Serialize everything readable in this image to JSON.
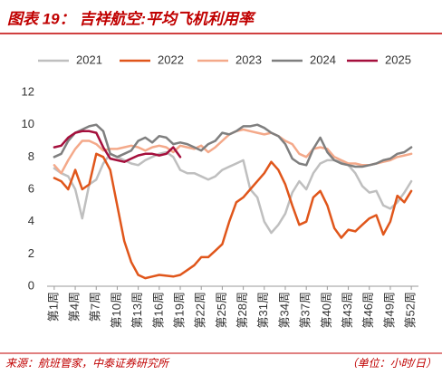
{
  "title": "图表 19： 吉祥航空:平均飞机利用率",
  "source": "来源：航班管家，中泰证券研究所",
  "unit_note": "（单位：小时/日）",
  "chart_data": {
    "type": "line",
    "categories": [
      "第1周",
      null,
      null,
      "第4周",
      null,
      null,
      "第7周",
      null,
      null,
      "第10周",
      null,
      null,
      "第13周",
      null,
      null,
      "第16周",
      null,
      null,
      "第19周",
      null,
      null,
      "第22周",
      null,
      null,
      "第25周",
      null,
      null,
      "第28周",
      null,
      null,
      "第31周",
      null,
      null,
      "第34周",
      null,
      null,
      "第37周",
      null,
      null,
      "第40周",
      null,
      null,
      "第43周",
      null,
      null,
      "第46周",
      null,
      null,
      "第49周",
      null,
      null,
      "第52周"
    ],
    "ylim": [
      0,
      12
    ],
    "yticks": [
      0,
      2,
      4,
      6,
      8,
      10,
      12
    ],
    "legend": "top",
    "series": [
      {
        "name": "2021",
        "color": "#bfbfbf",
        "values": [
          7.3,
          7.0,
          6.8,
          6.0,
          4.2,
          6.3,
          6.6,
          7.6,
          8.2,
          8.0,
          7.8,
          7.6,
          7.5,
          7.8,
          8.0,
          8.2,
          8.3,
          8.0,
          7.2,
          7.0,
          7.0,
          6.8,
          6.6,
          6.8,
          7.2,
          7.4,
          7.6,
          7.8,
          6.0,
          5.5,
          4.0,
          3.3,
          3.8,
          4.5,
          5.8,
          6.5,
          6.0,
          7.0,
          7.6,
          7.8,
          7.8,
          7.7,
          7.5,
          7.0,
          6.2,
          5.8,
          5.9,
          5.0,
          4.8,
          5.2,
          5.8,
          6.5
        ]
      },
      {
        "name": "2022",
        "color": "#e0561b",
        "values": [
          6.7,
          6.5,
          6.0,
          7.2,
          6.0,
          6.3,
          8.2,
          8.0,
          7.2,
          5.0,
          2.8,
          1.5,
          0.7,
          0.5,
          0.6,
          0.7,
          0.65,
          0.6,
          0.7,
          1.0,
          1.3,
          1.8,
          1.8,
          2.2,
          2.6,
          4.0,
          5.2,
          5.5,
          6.0,
          6.5,
          7.0,
          7.7,
          7.2,
          6.3,
          5.0,
          3.8,
          4.0,
          5.5,
          5.9,
          5.0,
          3.6,
          3.0,
          3.5,
          3.4,
          3.8,
          4.2,
          4.4,
          3.2,
          4.0,
          5.6,
          5.2,
          5.9
        ]
      },
      {
        "name": "2023",
        "color": "#f4a98a",
        "values": [
          7.5,
          7.0,
          7.8,
          8.5,
          9.0,
          9.0,
          8.8,
          8.4,
          8.5,
          8.5,
          8.6,
          8.7,
          8.6,
          8.4,
          8.6,
          8.7,
          8.6,
          8.3,
          8.7,
          8.6,
          8.5,
          8.7,
          8.3,
          8.6,
          9.0,
          9.4,
          9.6,
          9.7,
          9.6,
          9.5,
          9.4,
          9.5,
          9.3,
          9.0,
          8.8,
          8.2,
          8.0,
          8.5,
          8.6,
          8.5,
          8.0,
          7.8,
          7.6,
          7.6,
          7.5,
          7.5,
          7.6,
          7.7,
          7.8,
          8.0,
          8.1,
          8.2
        ]
      },
      {
        "name": "2024",
        "color": "#7f7f7f",
        "values": [
          8.0,
          8.2,
          9.0,
          9.5,
          9.7,
          9.9,
          10.0,
          9.6,
          8.2,
          8.0,
          8.2,
          8.4,
          9.0,
          9.2,
          8.9,
          9.3,
          9.2,
          8.8,
          8.9,
          8.8,
          8.6,
          8.4,
          8.8,
          9.0,
          9.5,
          9.4,
          9.6,
          9.9,
          9.9,
          10.0,
          9.8,
          9.5,
          9.3,
          8.8,
          7.9,
          7.6,
          7.5,
          8.5,
          9.2,
          8.3,
          7.8,
          7.6,
          7.5,
          7.4,
          7.4,
          7.5,
          7.6,
          7.8,
          7.9,
          8.2,
          8.3,
          8.6
        ]
      },
      {
        "name": "2025",
        "color": "#a50f3c",
        "values": [
          8.6,
          8.7,
          9.2,
          9.5,
          9.6,
          9.6,
          9.5,
          8.6,
          7.9,
          7.8,
          7.7,
          7.9,
          8.1,
          8.2,
          8.2,
          8.1,
          8.2,
          8.6,
          8.0,
          null,
          null,
          null,
          null,
          null,
          null,
          null,
          null,
          null,
          null,
          null,
          null,
          null,
          null,
          null,
          null,
          null,
          null,
          null,
          null,
          null,
          null,
          null,
          null,
          null,
          null,
          null,
          null,
          null,
          null,
          null,
          null,
          null
        ]
      }
    ]
  }
}
